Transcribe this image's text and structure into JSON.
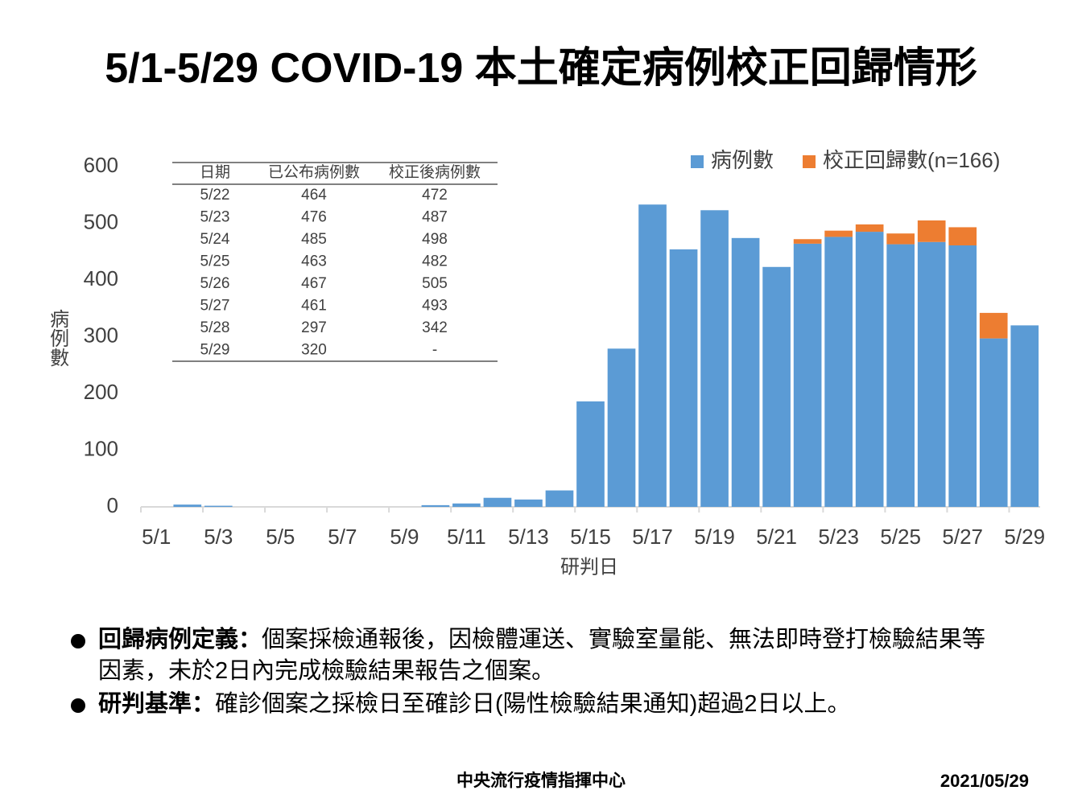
{
  "chart_data": {
    "type": "stacked-bar",
    "title": "5/1-5/29 COVID-19 本土確定病例校正回歸情形",
    "x_label": "研判日",
    "y_label": "病例數",
    "categories": [
      "5/1",
      null,
      "5/3",
      null,
      "5/5",
      null,
      "5/7",
      null,
      "5/9",
      null,
      "5/11",
      null,
      "5/13",
      null,
      "5/15",
      null,
      "5/17",
      null,
      "5/19",
      null,
      "5/21",
      null,
      "5/23",
      null,
      "5/25",
      null,
      "5/27",
      null,
      "5/29"
    ],
    "series": [
      {
        "name": "病例數",
        "color": "#5b9bd5",
        "values": [
          0,
          4,
          2,
          0,
          0,
          0,
          0,
          0,
          0,
          3,
          6,
          16,
          13,
          29,
          186,
          279,
          533,
          454,
          523,
          474,
          423,
          464,
          476,
          485,
          463,
          467,
          461,
          297,
          320
        ]
      },
      {
        "name": "校正回歸數(n=166)",
        "color": "#ed7d31",
        "values": [
          null,
          null,
          null,
          null,
          null,
          null,
          null,
          null,
          null,
          null,
          null,
          null,
          null,
          null,
          null,
          null,
          null,
          null,
          null,
          null,
          null,
          8,
          11,
          13,
          19,
          38,
          32,
          45,
          null
        ]
      }
    ],
    "ylim": [
      0,
      600
    ],
    "yticks": [
      0,
      100,
      200,
      300,
      400,
      500,
      600
    ],
    "grid": false,
    "legend": "top-right"
  },
  "table": {
    "headers": [
      "日期",
      "已公布病例數",
      "校正後病例數"
    ],
    "rows": [
      [
        "5/22",
        464,
        472
      ],
      [
        "5/23",
        476,
        487
      ],
      [
        "5/24",
        485,
        498
      ],
      [
        "5/25",
        463,
        482
      ],
      [
        "5/26",
        467,
        505
      ],
      [
        "5/27",
        461,
        493
      ],
      [
        "5/28",
        297,
        342
      ],
      [
        "5/29",
        320,
        "-"
      ]
    ]
  },
  "bullets": [
    {
      "term": "回歸病例定義：",
      "text": "個案採檢通報後，因檢體運送、實驗室量能、無法即時登打檢驗結果等因素，未於2日內完成檢驗結果報告之個案。"
    },
    {
      "term": "研判基準：",
      "text": "確診個案之採檢日至確診日(陽性檢驗結果通知)超過2日以上。"
    }
  ],
  "footer": {
    "org": "中央流行疫情指揮中心",
    "date": "2021/05/29"
  }
}
